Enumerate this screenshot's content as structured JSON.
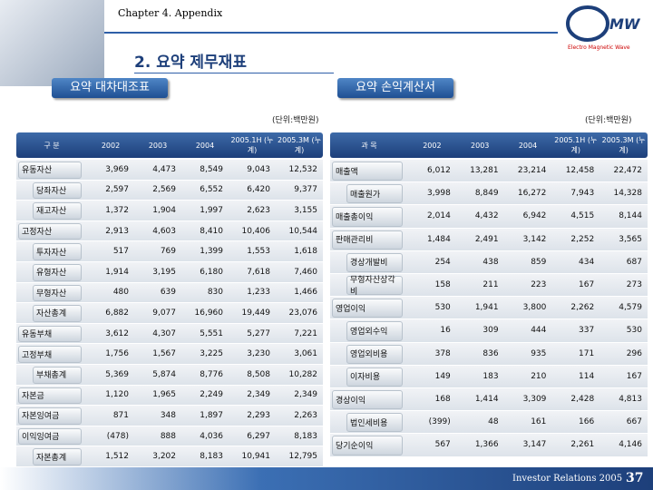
{
  "header": {
    "chapter": "Chapter 4. Appendix",
    "title": "2. 요약 제무재표",
    "logo": "MW",
    "logo_sub": "Electro Magnetic Wave"
  },
  "tabs": [
    "요약 대차대조표",
    "요약 손익계산서"
  ],
  "balance_sheet": {
    "unit": "(단위:백만원)",
    "columns": [
      "구  분",
      "2002",
      "2003",
      "2004",
      "2005.1H (누계)",
      "2005.3M (누계)"
    ],
    "rows": [
      [
        "유동자산",
        "3,969",
        "4,473",
        "8,549",
        "9,043",
        "12,532"
      ],
      [
        "당좌자산",
        "2,597",
        "2,569",
        "6,552",
        "6,420",
        "9,377"
      ],
      [
        "재고자산",
        "1,372",
        "1,904",
        "1,997",
        "2,623",
        "3,155"
      ],
      [
        "고정자산",
        "2,913",
        "4,603",
        "8,410",
        "10,406",
        "10,544"
      ],
      [
        "투자자산",
        "517",
        "769",
        "1,399",
        "1,553",
        "1,618"
      ],
      [
        "유형자산",
        "1,914",
        "3,195",
        "6,180",
        "7,618",
        "7,460"
      ],
      [
        "무형자산",
        "480",
        "639",
        "830",
        "1,233",
        "1,466"
      ],
      [
        "자산총계",
        "6,882",
        "9,077",
        "16,960",
        "19,449",
        "23,076"
      ],
      [
        "유동부채",
        "3,612",
        "4,307",
        "5,551",
        "5,277",
        "7,221"
      ],
      [
        "고정부채",
        "1,756",
        "1,567",
        "3,225",
        "3,230",
        "3,061"
      ],
      [
        "부채총계",
        "5,369",
        "5,874",
        "8,776",
        "8,508",
        "10,282"
      ],
      [
        "자본금",
        "1,120",
        "1,965",
        "2,249",
        "2,349",
        "2,349"
      ],
      [
        "자본잉여금",
        "871",
        "348",
        "1,897",
        "2,293",
        "2,263"
      ],
      [
        "이익잉여금",
        "(478)",
        "888",
        "4,036",
        "6,297",
        "8,183"
      ],
      [
        "자본총계",
        "1,512",
        "3,202",
        "8,183",
        "10,941",
        "12,795"
      ]
    ]
  },
  "income_statement": {
    "unit": "(단위:백만원)",
    "columns": [
      "과 목",
      "2002",
      "2003",
      "2004",
      "2005.1H (누계)",
      "2005.3M (누계)"
    ],
    "rows": [
      [
        "매출액",
        "6,012",
        "13,281",
        "23,214",
        "12,458",
        "22,472"
      ],
      [
        "매출원가",
        "3,998",
        "8,849",
        "16,272",
        "7,943",
        "14,328"
      ],
      [
        "매출총이익",
        "2,014",
        "4,432",
        "6,942",
        "4,515",
        "8,144"
      ],
      [
        "판매관리비",
        "1,484",
        "2,491",
        "3,142",
        "2,252",
        "3,565"
      ],
      [
        "경상개발비",
        "254",
        "438",
        "859",
        "434",
        "687"
      ],
      [
        "무형자산상각비",
        "158",
        "211",
        "223",
        "167",
        "273"
      ],
      [
        "영업이익",
        "530",
        "1,941",
        "3,800",
        "2,262",
        "4,579"
      ],
      [
        "영업외수익",
        "16",
        "309",
        "444",
        "337",
        "530"
      ],
      [
        "영업외비용",
        "378",
        "836",
        "935",
        "171",
        "296"
      ],
      [
        "이자비용",
        "149",
        "183",
        "210",
        "114",
        "167"
      ],
      [
        "경상이익",
        "168",
        "1,414",
        "3,309",
        "2,428",
        "4,813"
      ],
      [
        "법인세비용",
        "(399)",
        "48",
        "161",
        "166",
        "667"
      ],
      [
        "당기순이익",
        "567",
        "1,366",
        "3,147",
        "2,261",
        "4,146"
      ]
    ]
  },
  "footer": {
    "text": "Investor Relations 2005",
    "page": "37"
  }
}
